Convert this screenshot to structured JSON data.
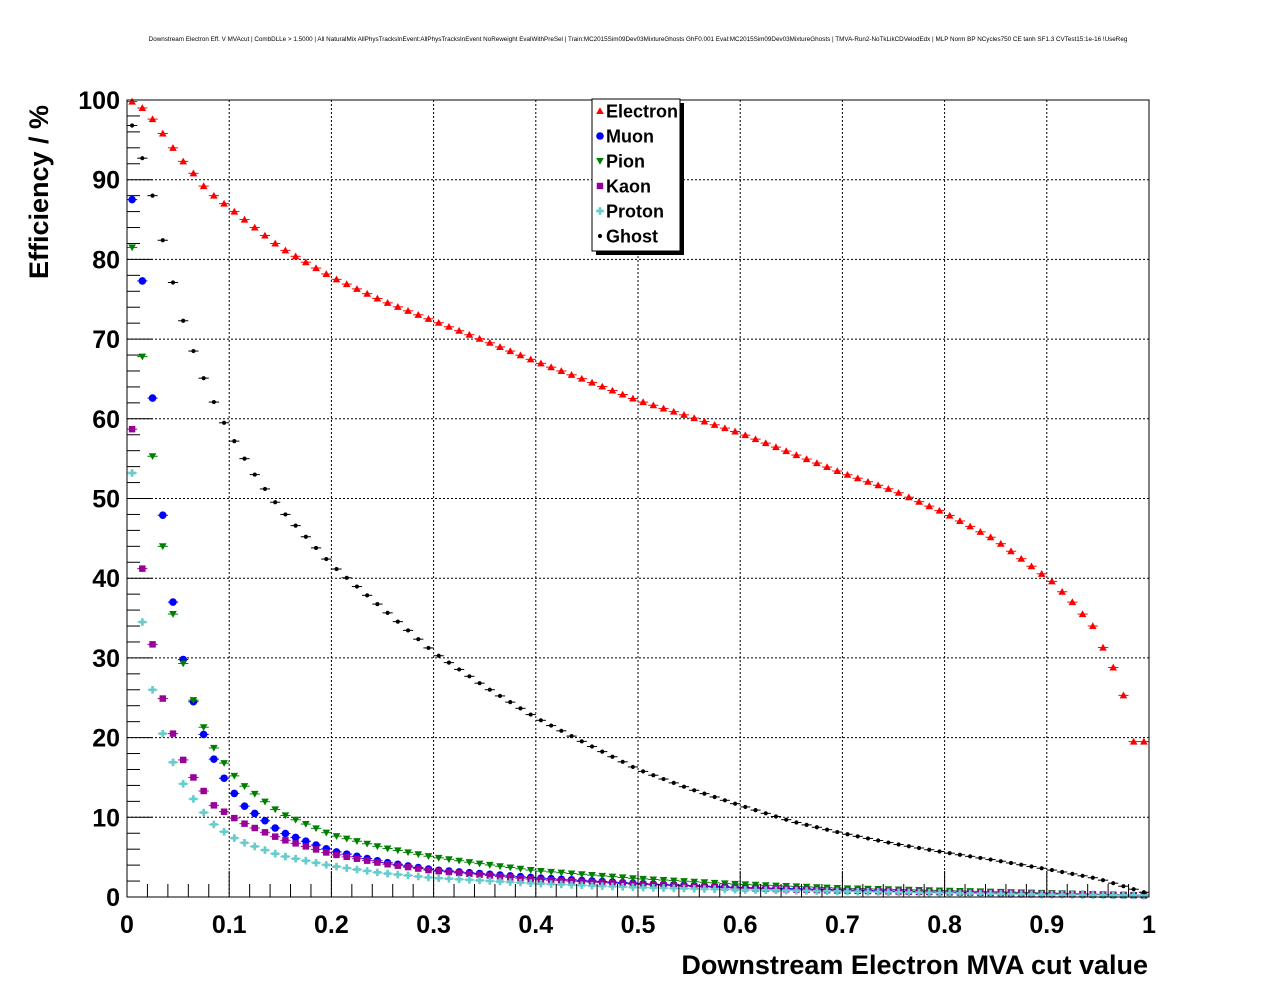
{
  "chart_data": {
    "type": "scatter",
    "title": "Downstream Electron Eff. V MVAcut | CombDLLe > 1.5000 | All NaturalMix AllPhysTracksInEvent:AllPhysTracksInEvent NoReweight EvalWithPreSel | Train:MC2015Sim09Dev03MixtureGhosts GhF0.001 Eval:MC2015Sim09Dev03MixtureGhosts | TMVA-Run2-NoTkLikCDVelodEdx | MLP Norm BP NCycles750 CE tanh SF1.3 CVTest15:1e-16 !UseReg",
    "xlabel": "Downstream Electron MVA cut value",
    "ylabel": "Efficiency / %",
    "xlim": [
      0,
      1
    ],
    "ylim": [
      0,
      100
    ],
    "grid": true,
    "legend_position": "top-center",
    "x_ticks": [
      "0",
      "0.1",
      "0.2",
      "0.3",
      "0.4",
      "0.5",
      "0.6",
      "0.7",
      "0.8",
      "0.9",
      "1"
    ],
    "y_ticks": [
      "0",
      "10",
      "20",
      "30",
      "40",
      "50",
      "60",
      "70",
      "80",
      "90",
      "100"
    ],
    "x_sampling": {
      "start": 0.005,
      "step": 0.01,
      "count": 100
    },
    "series": [
      {
        "name": "Electron",
        "color": "#ff0000",
        "marker": "triangle-up",
        "keypoints": [
          [
            0.005,
            99.8
          ],
          [
            0.015,
            99
          ],
          [
            0.025,
            97.6
          ],
          [
            0.035,
            95.8
          ],
          [
            0.045,
            94
          ],
          [
            0.055,
            92.3
          ],
          [
            0.065,
            90.8
          ],
          [
            0.075,
            89.2
          ],
          [
            0.085,
            88
          ],
          [
            0.095,
            87
          ],
          [
            0.105,
            86
          ],
          [
            0.15,
            81.5
          ],
          [
            0.2,
            77.8
          ],
          [
            0.25,
            74.8
          ],
          [
            0.3,
            72.3
          ],
          [
            0.35,
            69.8
          ],
          [
            0.4,
            67.2
          ],
          [
            0.45,
            64.8
          ],
          [
            0.5,
            62.3
          ],
          [
            0.55,
            60.3
          ],
          [
            0.6,
            58.2
          ],
          [
            0.65,
            55.7
          ],
          [
            0.7,
            53.2
          ],
          [
            0.75,
            51
          ],
          [
            0.8,
            48.2
          ],
          [
            0.85,
            44.8
          ],
          [
            0.885,
            41.5
          ],
          [
            0.905,
            39.6
          ],
          [
            0.925,
            37
          ],
          [
            0.945,
            34
          ],
          [
            0.955,
            31.3
          ],
          [
            0.965,
            28.8
          ],
          [
            0.975,
            25.3
          ],
          [
            0.985,
            19.5
          ]
        ]
      },
      {
        "name": "Muon",
        "color": "#0000ff",
        "marker": "circle",
        "keypoints": [
          [
            0.005,
            87.5
          ],
          [
            0.015,
            77.3
          ],
          [
            0.025,
            62.6
          ],
          [
            0.035,
            47.9
          ],
          [
            0.045,
            37
          ],
          [
            0.055,
            29.8
          ],
          [
            0.065,
            24.5
          ],
          [
            0.075,
            20.4
          ],
          [
            0.085,
            17.3
          ],
          [
            0.095,
            14.9
          ],
          [
            0.105,
            13
          ],
          [
            0.115,
            11.4
          ],
          [
            0.15,
            8.2
          ],
          [
            0.2,
            5.8
          ],
          [
            0.25,
            4.4
          ],
          [
            0.3,
            3.4
          ],
          [
            0.4,
            2.4
          ],
          [
            0.5,
            1.7
          ],
          [
            0.6,
            1.2
          ],
          [
            0.7,
            0.9
          ],
          [
            0.8,
            0.6
          ],
          [
            0.9,
            0.4
          ],
          [
            0.995,
            0.2
          ]
        ]
      },
      {
        "name": "Pion",
        "color": "#008000",
        "marker": "triangle-down",
        "keypoints": [
          [
            0.005,
            81.5
          ],
          [
            0.015,
            67.8
          ],
          [
            0.025,
            55.3
          ],
          [
            0.035,
            44
          ],
          [
            0.045,
            35.5
          ],
          [
            0.055,
            29.3
          ],
          [
            0.065,
            24.7
          ],
          [
            0.075,
            21.3
          ],
          [
            0.085,
            18.7
          ],
          [
            0.095,
            16.8
          ],
          [
            0.105,
            15.2
          ],
          [
            0.115,
            13.9
          ],
          [
            0.15,
            10.5
          ],
          [
            0.2,
            7.8
          ],
          [
            0.25,
            6.2
          ],
          [
            0.3,
            5
          ],
          [
            0.35,
            4.1
          ],
          [
            0.4,
            3.3
          ],
          [
            0.5,
            2.3
          ],
          [
            0.6,
            1.6
          ],
          [
            0.7,
            1.1
          ],
          [
            0.8,
            0.8
          ],
          [
            0.9,
            0.5
          ],
          [
            0.995,
            0.2
          ]
        ]
      },
      {
        "name": "Kaon",
        "color": "#990099",
        "marker": "square",
        "keypoints": [
          [
            0.005,
            58.7
          ],
          [
            0.015,
            41.2
          ],
          [
            0.025,
            31.7
          ],
          [
            0.035,
            24.9
          ],
          [
            0.045,
            20.5
          ],
          [
            0.055,
            17.2
          ],
          [
            0.065,
            15
          ],
          [
            0.075,
            13.3
          ],
          [
            0.085,
            11.5
          ],
          [
            0.095,
            10.7
          ],
          [
            0.105,
            9.9
          ],
          [
            0.115,
            9.2
          ],
          [
            0.15,
            7.3
          ],
          [
            0.2,
            5.4
          ],
          [
            0.25,
            4.2
          ],
          [
            0.3,
            3.3
          ],
          [
            0.4,
            2.2
          ],
          [
            0.5,
            1.6
          ],
          [
            0.6,
            1.1
          ],
          [
            0.7,
            0.8
          ],
          [
            0.8,
            0.6
          ],
          [
            0.9,
            0.4
          ],
          [
            0.995,
            0.2
          ]
        ]
      },
      {
        "name": "Proton",
        "color": "#66cccc",
        "marker": "cross",
        "keypoints": [
          [
            0.005,
            53.2
          ],
          [
            0.015,
            34.5
          ],
          [
            0.025,
            26
          ],
          [
            0.035,
            20.5
          ],
          [
            0.045,
            16.9
          ],
          [
            0.055,
            14.2
          ],
          [
            0.065,
            12.3
          ],
          [
            0.075,
            10.6
          ],
          [
            0.085,
            9.1
          ],
          [
            0.095,
            8.2
          ],
          [
            0.105,
            7.4
          ],
          [
            0.115,
            6.8
          ],
          [
            0.15,
            5.2
          ],
          [
            0.2,
            3.9
          ],
          [
            0.25,
            3
          ],
          [
            0.3,
            2.4
          ],
          [
            0.4,
            1.7
          ],
          [
            0.5,
            1.2
          ],
          [
            0.6,
            0.9
          ],
          [
            0.7,
            0.7
          ],
          [
            0.8,
            0.5
          ],
          [
            0.9,
            0.3
          ],
          [
            0.995,
            0.2
          ]
        ]
      },
      {
        "name": "Ghost",
        "color": "#000000",
        "marker": "dot",
        "keypoints": [
          [
            0.005,
            96.8
          ],
          [
            0.015,
            92.7
          ],
          [
            0.025,
            88
          ],
          [
            0.035,
            82.4
          ],
          [
            0.045,
            77.1
          ],
          [
            0.055,
            72.3
          ],
          [
            0.065,
            68.5
          ],
          [
            0.075,
            65.1
          ],
          [
            0.085,
            62.1
          ],
          [
            0.095,
            59.5
          ],
          [
            0.105,
            57.2
          ],
          [
            0.115,
            55
          ],
          [
            0.125,
            53
          ],
          [
            0.135,
            51.2
          ],
          [
            0.15,
            48.7
          ],
          [
            0.2,
            41.7
          ],
          [
            0.25,
            36.2
          ],
          [
            0.3,
            30.7
          ],
          [
            0.35,
            26.4
          ],
          [
            0.4,
            22.5
          ],
          [
            0.45,
            19.2
          ],
          [
            0.5,
            16
          ],
          [
            0.55,
            13.6
          ],
          [
            0.6,
            11.5
          ],
          [
            0.65,
            9.5
          ],
          [
            0.7,
            8
          ],
          [
            0.75,
            6.7
          ],
          [
            0.8,
            5.6
          ],
          [
            0.85,
            4.6
          ],
          [
            0.9,
            3.5
          ],
          [
            0.95,
            2.3
          ],
          [
            0.995,
            0.6
          ]
        ]
      }
    ]
  }
}
